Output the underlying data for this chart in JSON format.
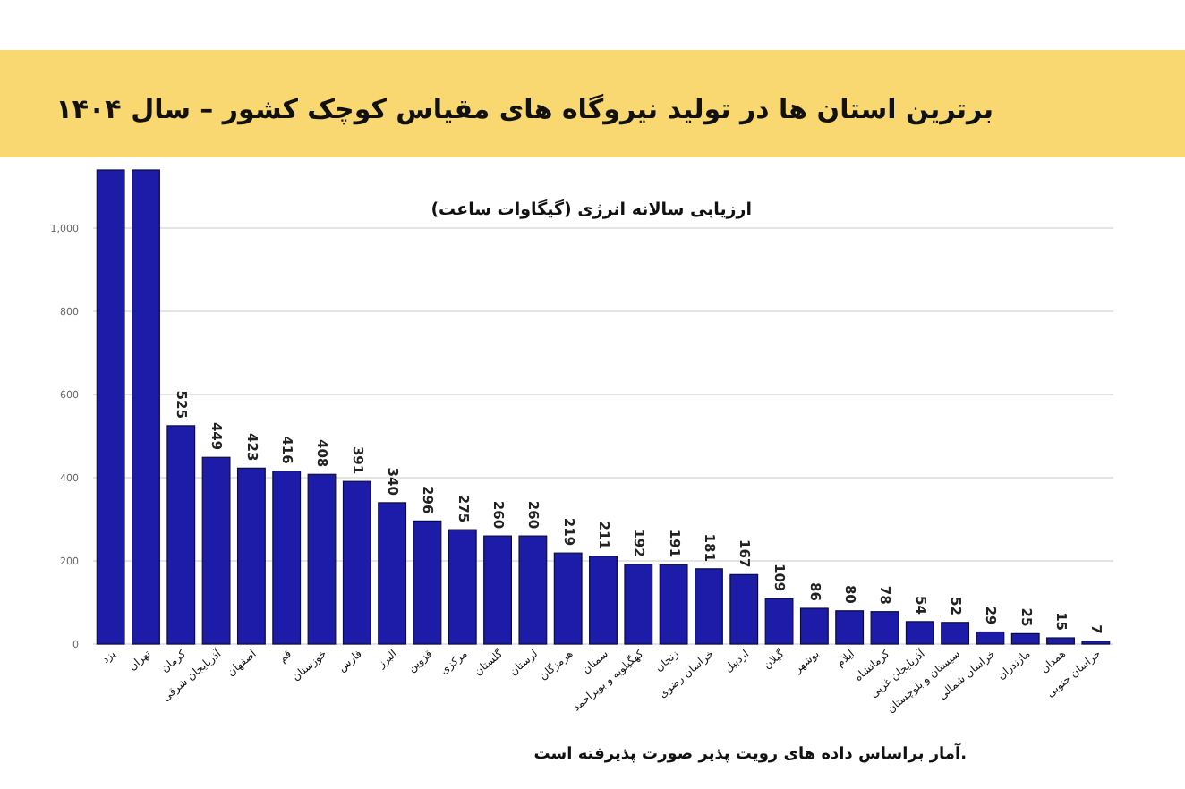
{
  "chart_data": {
    "type": "bar",
    "title": "برترین استان ها در تولید نیروگاه های مقیاس کوچک کشور – سال ۱۴۰۴",
    "subtitle": "ارزیابی سالانه انرژی (گیگاوات ساعت)",
    "annotations": [
      "آمار براساس داده های رویت پذیر صورت پذیرفته است."
    ],
    "categories": [
      "یزد",
      "تهران",
      "کرمان",
      "آذربایجان شرقی",
      "اصفهان",
      "قم",
      "خوزستان",
      "فارس",
      "البرز",
      "قزوین",
      "مرکزی",
      "گلستان",
      "لرستان",
      "هرمزگان",
      "سمنان",
      "کهگیلویه و بویراحمد",
      "زنجان",
      "خراسان رضوی",
      "اردبیل",
      "گیلان",
      "بوشهر",
      "ایلام",
      "کرمانشاه",
      "آذربایجان غربی",
      "سیستان و بلوچستان",
      "خراسان شمالی",
      "مازندران",
      "همدان",
      "خراسان جنوبی"
    ],
    "values": [
      1140,
      1140,
      525,
      449,
      423,
      416,
      408,
      391,
      340,
      296,
      275,
      260,
      260,
      219,
      211,
      192,
      191,
      181,
      167,
      109,
      86,
      80,
      78,
      54,
      52,
      29,
      25,
      15,
      7
    ],
    "value_labels": [
      null,
      null,
      "525",
      "449",
      "423",
      "416",
      "408",
      "391",
      "340",
      "296",
      "275",
      "260",
      "260",
      "219",
      "211",
      "192",
      "191",
      "181",
      "167",
      "109",
      "86",
      "80",
      "78",
      "54",
      "52",
      "29",
      "25",
      "15",
      "7"
    ],
    "color": "#1c1ca8",
    "ylim": [
      0,
      1140
    ],
    "yticks": [
      0,
      200,
      400,
      600,
      800,
      {
        "value": 1000,
        "label": "1,000"
      }
    ],
    "grid": "y"
  }
}
